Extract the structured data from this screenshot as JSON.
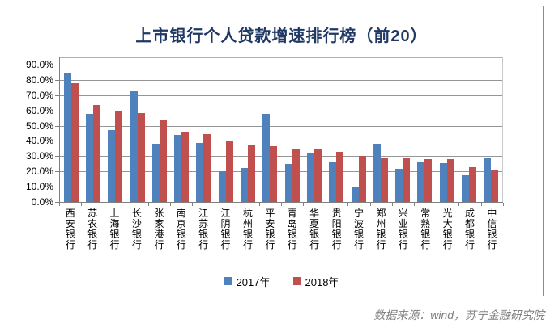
{
  "title": "上市银行个人贷款增速排行榜（前20）",
  "footer": {
    "source_text": "数据来源：wind，苏宁金融研究院"
  },
  "colors": {
    "title": "#1F3864",
    "series_2017": "#4F81BD",
    "series_2018": "#C0504D",
    "gridline": "#969696",
    "axis": "#808080",
    "frame_border": "#8C8C8C",
    "source_text": "#7F7F7F",
    "tick_label": "#000000"
  },
  "chart_data": {
    "type": "bar",
    "title": "上市银行个人贷款增速排行榜（前20）",
    "xlabel": "",
    "ylabel": "",
    "ylim": [
      0,
      90
    ],
    "ytick_step": 10,
    "grid": true,
    "legend_position": "bottom",
    "yticklabels": [
      "0.0%",
      "10.0%",
      "20.0%",
      "30.0%",
      "40.0%",
      "50.0%",
      "60.0%",
      "70.0%",
      "80.0%",
      "90.0%"
    ],
    "categories": [
      "西安银行",
      "苏农银行",
      "上海银行",
      "长沙银行",
      "张家港行",
      "南京银行",
      "江苏银行",
      "江阴银行",
      "杭州银行",
      "平安银行",
      "青岛银行",
      "华夏银行",
      "贵阳银行",
      "宁波银行",
      "郑州银行",
      "兴业银行",
      "常熟银行",
      "光大银行",
      "成都银行",
      "中信银行"
    ],
    "series": [
      {
        "name": "2017年",
        "color": "#4F81BD",
        "values": [
          84.5,
          57.8,
          47.3,
          72.5,
          38.4,
          44.1,
          38.8,
          20.0,
          22.5,
          57.9,
          24.7,
          32.1,
          26.5,
          10.1,
          38.3,
          21.5,
          26.1,
          25.4,
          17.6,
          29.3
        ]
      },
      {
        "name": "2018年",
        "color": "#C0504D",
        "values": [
          77.6,
          63.4,
          59.6,
          58.2,
          53.5,
          45.4,
          44.4,
          39.5,
          37.0,
          36.5,
          34.9,
          34.4,
          33.0,
          30.3,
          29.1,
          28.6,
          28.0,
          27.9,
          22.9,
          20.5
        ]
      }
    ]
  }
}
